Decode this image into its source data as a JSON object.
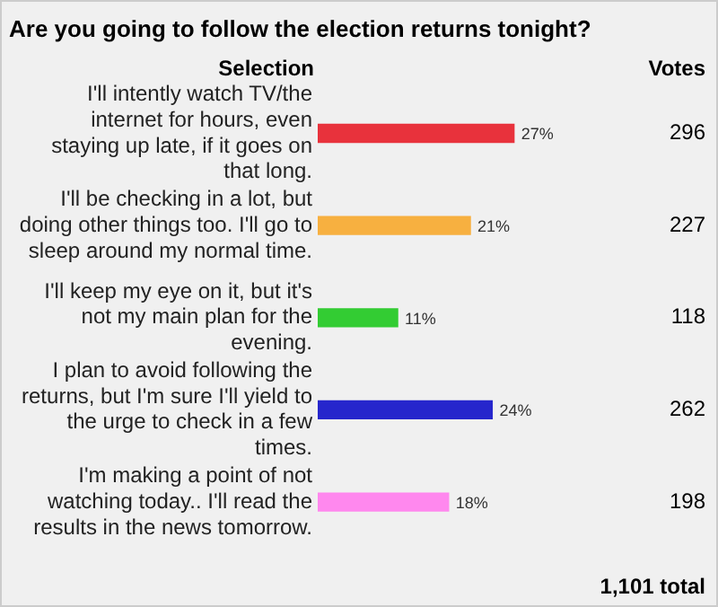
{
  "chart_data": {
    "type": "bar",
    "orientation": "horizontal",
    "title": "Are you going to follow the election returns tonight?",
    "categories": [
      "I'll intently watch TV/the internet for hours, even staying up late, if it goes on that long.",
      "I'll be checking in a lot, but doing other things too. I'll go to sleep around my normal time.",
      "I'll keep my eye on it, but it's not my main plan for the evening.",
      "I plan to avoid following the returns, but I'm sure I'll yield to the urge to check in a few times.",
      "I'm making a point of not watching today.. I'll read the results in the news tomorrow."
    ],
    "values": [
      27,
      21,
      11,
      24,
      18
    ],
    "value_labels": [
      "27%",
      "21%",
      "11%",
      "24%",
      "18%"
    ],
    "colors": [
      "#e8323c",
      "#f7b040",
      "#33cc33",
      "#2626cc",
      "#ff88ee"
    ],
    "annotations": [
      "Selection",
      "Votes",
      "296",
      "227",
      "118",
      "262",
      "198",
      "1,101 total"
    ],
    "tick_labels": "y",
    "legend": false,
    "grid": false
  }
}
